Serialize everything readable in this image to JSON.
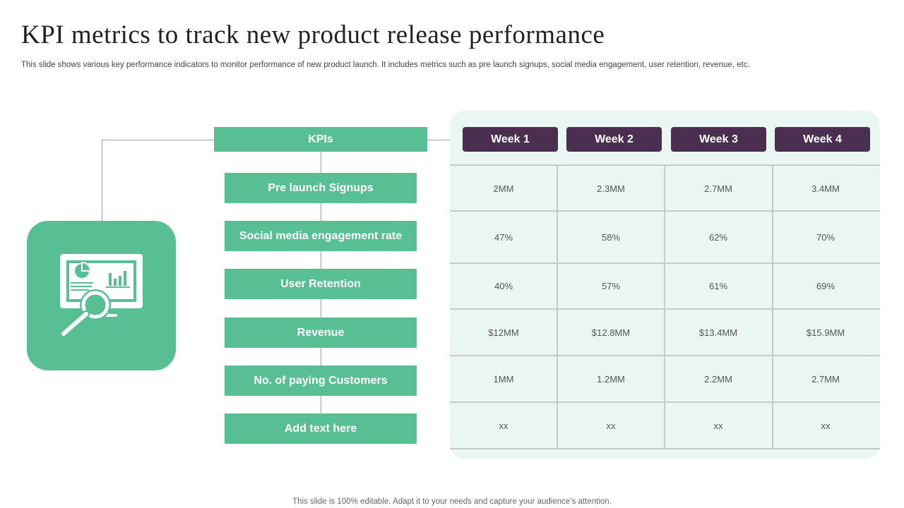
{
  "slide": {
    "title": "KPI metrics to track new product release performance",
    "subtitle": "This slide shows various key performance indicators to monitor performance of new product launch. It includes metrics such as pre launch signups, social media engagement, user retention, revenue, etc.",
    "footer": "This slide is 100% editable. Adapt it to your needs and capture your audience’s attention."
  },
  "icon": {
    "name": "monitor-analytics-magnifier-icon",
    "color": "#58bf94"
  },
  "kpis": {
    "header": "KPIs",
    "items": [
      "Pre launch Signups",
      "Social media engagement rate",
      "User Retention",
      "Revenue",
      "No. of paying Customers",
      "Add text  here"
    ]
  },
  "table": {
    "weeks": [
      "Week 1",
      "Week 2",
      "Week 3",
      "Week 4"
    ],
    "rows": [
      [
        "2MM",
        "2.3MM",
        "2.7MM",
        "3.4MM"
      ],
      [
        "47%",
        "58%",
        "62%",
        "70%"
      ],
      [
        "40%",
        "57%",
        "61%",
        "69%"
      ],
      [
        "$12MM",
        "$12.8MM",
        "$13.4MM",
        "$15.9MM"
      ],
      [
        "1MM",
        "1.2MM",
        "2.2MM",
        "2.7MM"
      ],
      [
        "xx",
        "xx",
        "xx",
        "xx"
      ]
    ]
  },
  "colors": {
    "accent_green": "#58bf94",
    "week_header_purple": "#4a2f50",
    "table_background": "#eaf6f1"
  }
}
